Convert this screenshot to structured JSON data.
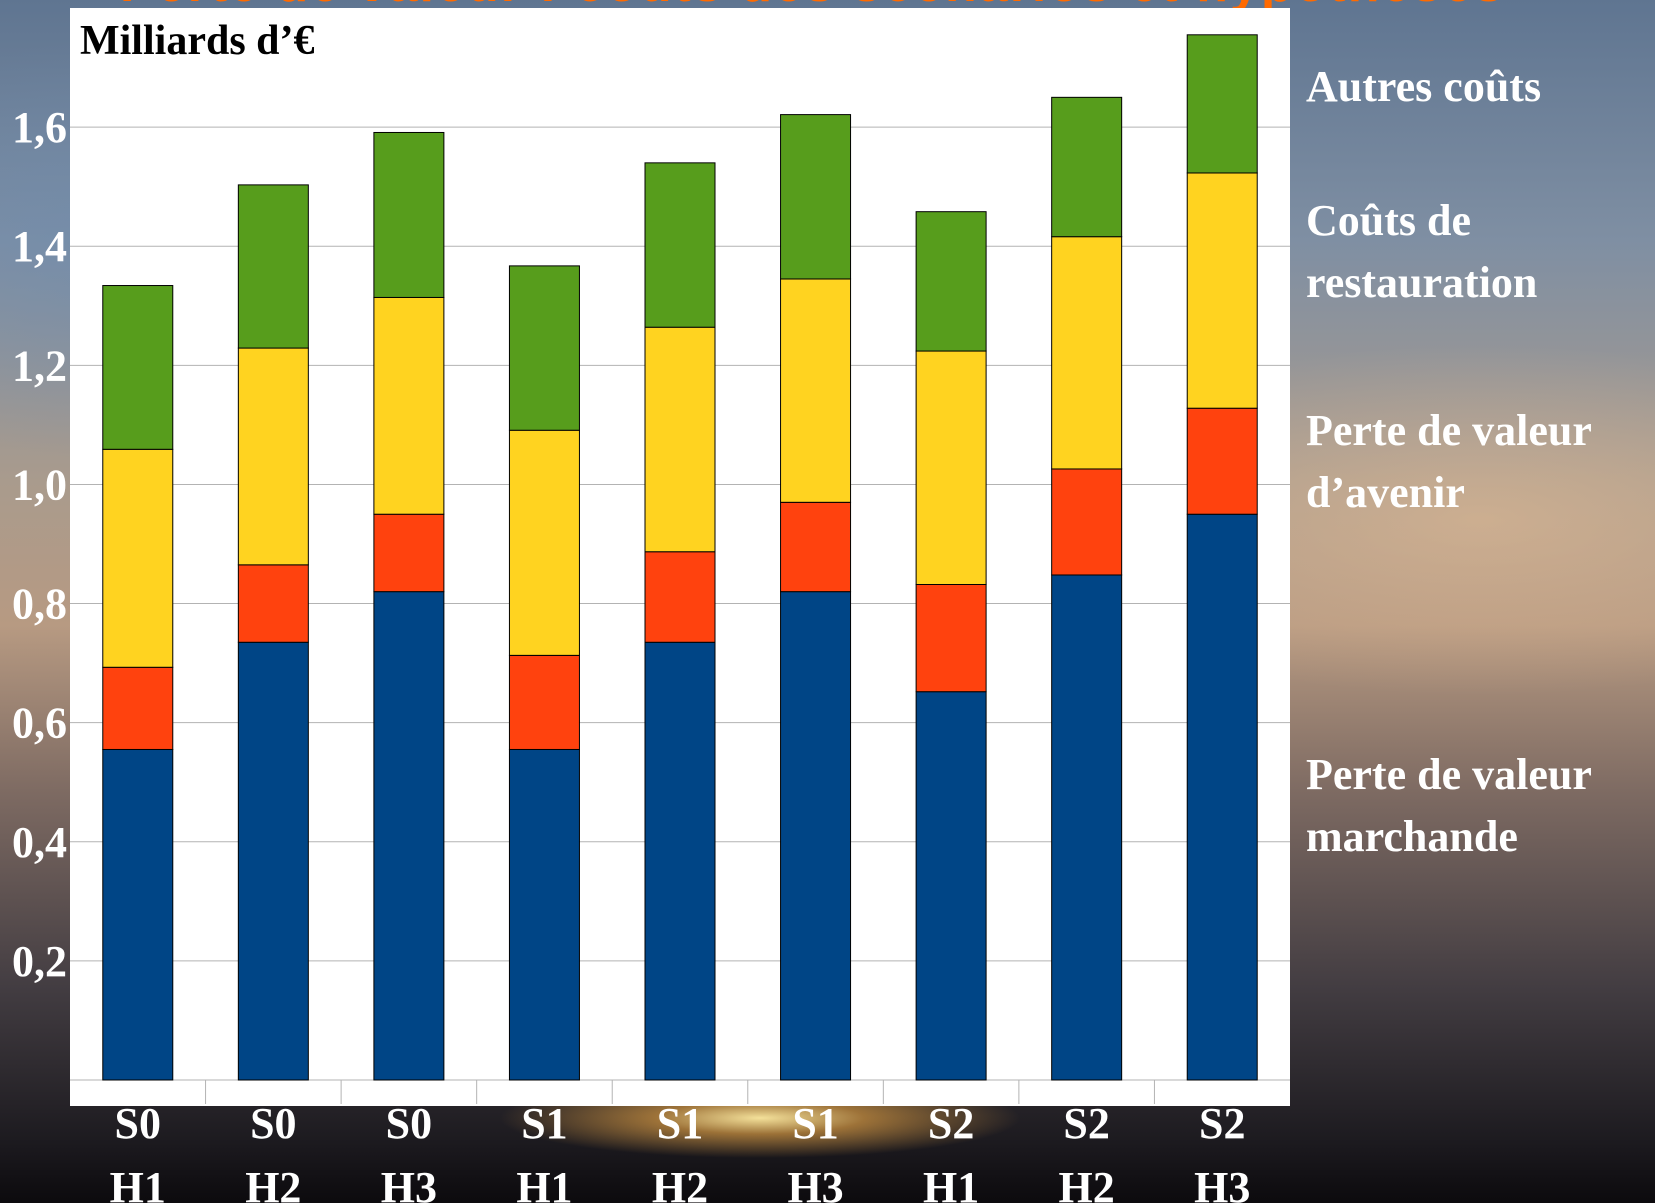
{
  "colors": {
    "autres": "#579d1c",
    "restauration": "#ffd320",
    "avenir": "#ff420e",
    "marchande": "#004586",
    "plot_bg": "#ffffff",
    "grid": "#b3b3b3",
    "bar_stroke": "#000000"
  },
  "header": {
    "title_partial": "Perte de valeur : coûts des scénarios et hypothèses"
  },
  "legend": [
    {
      "key": "autres",
      "lines": [
        "Autres coûts"
      ]
    },
    {
      "key": "restauration",
      "lines": [
        "Coûts de",
        "restauration"
      ]
    },
    {
      "key": "avenir",
      "lines": [
        "Perte de valeur",
        "d’avenir"
      ]
    },
    {
      "key": "marchande",
      "lines": [
        "Perte de valeur",
        "marchande"
      ]
    }
  ],
  "chart_data": {
    "type": "bar",
    "stacked": true,
    "unit_label": "Milliards d’€",
    "categories": [
      [
        "S0",
        "H1"
      ],
      [
        "S0",
        "H2"
      ],
      [
        "S0",
        "H3"
      ],
      [
        "S1",
        "H1"
      ],
      [
        "S1",
        "H2"
      ],
      [
        "S1",
        "H3"
      ],
      [
        "S2",
        "H1"
      ],
      [
        "S2",
        "H2"
      ],
      [
        "S2",
        "H3"
      ]
    ],
    "ylim": [
      0,
      1.8
    ],
    "yticks": [
      {
        "value": 0.2,
        "label": "0,2"
      },
      {
        "value": 0.4,
        "label": "0,4"
      },
      {
        "value": 0.6,
        "label": "0,6"
      },
      {
        "value": 0.8,
        "label": "0,8"
      },
      {
        "value": 1.0,
        "label": "1,0"
      },
      {
        "value": 1.2,
        "label": "1,2"
      },
      {
        "value": 1.4,
        "label": "1,4"
      },
      {
        "value": 1.6,
        "label": "1,6"
      }
    ],
    "grid": true,
    "legend_placement": "right",
    "series": [
      {
        "name": "Perte de valeur marchande",
        "key": "marchande",
        "values": [
          0.555,
          0.735,
          0.82,
          0.555,
          0.735,
          0.82,
          0.652,
          0.848,
          0.95
        ]
      },
      {
        "name": "Perte de valeur d’avenir",
        "key": "avenir",
        "values": [
          0.138,
          0.13,
          0.13,
          0.158,
          0.152,
          0.15,
          0.18,
          0.178,
          0.178
        ]
      },
      {
        "name": "Coûts de restauration",
        "key": "restauration",
        "values": [
          0.366,
          0.364,
          0.364,
          0.378,
          0.377,
          0.375,
          0.392,
          0.39,
          0.395
        ]
      },
      {
        "name": "Autres coûts",
        "key": "autres",
        "values": [
          0.275,
          0.274,
          0.277,
          0.276,
          0.276,
          0.276,
          0.234,
          0.234,
          0.232
        ]
      }
    ]
  }
}
